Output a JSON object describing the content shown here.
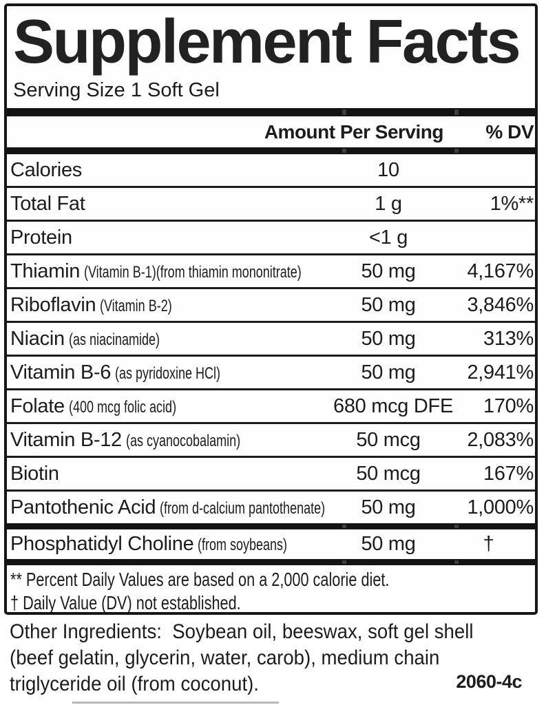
{
  "label": {
    "title": "Supplement Facts",
    "serving_size": "Serving Size 1 Soft Gel",
    "code": "2060-4c"
  },
  "table": {
    "amount_header": "Amount Per Serving",
    "dv_header": "% DV",
    "rows": [
      {
        "name": "Calories",
        "detail": "",
        "amount": "10",
        "dv": ""
      },
      {
        "name": "Total Fat",
        "detail": "",
        "amount": "1 g",
        "dv": "1%**"
      },
      {
        "name": "Protein",
        "detail": "",
        "amount": "<1 g",
        "dv": ""
      },
      {
        "name": "Thiamin",
        "detail": "(Vitamin B-1)(from thiamin mononitrate)",
        "amount": "50 mg",
        "dv": "4,167%"
      },
      {
        "name": "Riboflavin",
        "detail": "(Vitamin B-2)",
        "amount": "50 mg",
        "dv": "3,846%"
      },
      {
        "name": "Niacin",
        "detail": "(as niacinamide)",
        "amount": "50 mg",
        "dv": "313%"
      },
      {
        "name": "Vitamin B-6",
        "detail": "(as pyridoxine HCl)",
        "amount": "50 mg",
        "dv": "2,941%"
      },
      {
        "name": "Folate",
        "detail": "(400 mcg folic acid)",
        "amount": "680 mcg DFE",
        "dv": "170%"
      },
      {
        "name": "Vitamin B-12",
        "detail": "(as cyanocobalamin)",
        "amount": "50 mcg",
        "dv": "2,083%"
      },
      {
        "name": "Biotin",
        "detail": "",
        "amount": "50 mcg",
        "dv": "167%"
      },
      {
        "name": "Pantothenic Acid",
        "detail": "(from d-calcium pantothenate)",
        "amount": "50 mg",
        "dv": "1,000%"
      }
    ],
    "extra_row": {
      "name": "Phosphatidyl Choline",
      "detail": "(from soybeans)",
      "amount": "50 mg",
      "dv": "†"
    }
  },
  "footnotes": {
    "percent_dv": "** Percent Daily Values are based on a 2,000 calorie diet.",
    "dv_not_established": "† Daily Value (DV) not established."
  },
  "other_ingredients": {
    "lines": [
      "Other Ingredients:  Soybean oil, beeswax, soft gel shell",
      "(beef gelatin, glycerin, water, carob), medium chain",
      "triglyceride oil (from coconut)."
    ]
  }
}
